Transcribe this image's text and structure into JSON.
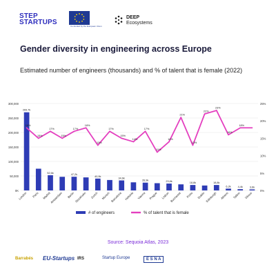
{
  "header": {
    "step_line1": "STEP",
    "step_line2": "STARTUPS",
    "eu_caption": "Co-funded by the European Union",
    "deep_line1": "DEEP",
    "deep_line2": "Ecosystems"
  },
  "title": "Gender diversity in engineering across Europe",
  "subtitle": "Estimated number of engineers (thousands) and % of talent that is female (2022)",
  "source": "Source: Sequoia Atlas, 2023",
  "footer": {
    "logo1": "Barrabés",
    "logo2": "EU-Startups",
    "logo3": "IRS",
    "logo4": "Startup Europe",
    "logo5": "E S N A"
  },
  "colors": {
    "bar": "#2e3cb5",
    "line": "#e43fbf",
    "title": "#1a1a3a",
    "source": "#7a2bd8"
  },
  "chart_data": {
    "type": "bar+line",
    "categories": [
      "London",
      "Paris",
      "Madrid",
      "Amsterdam",
      "Berlin",
      "Stockholm",
      "Zurich",
      "Munich",
      "Barcelona",
      "Helsinki",
      "Vienna",
      "Prague",
      "Lisbon",
      "Bucharest",
      "Porto",
      "Dublin",
      "Edinburgh",
      "Athens",
      "Tallinn",
      "Vilnius"
    ],
    "series": [
      {
        "name": "# of engineers",
        "type": "bar",
        "axis": "left",
        "values": [
          269.7,
          75,
          52.6,
          47,
          47.2,
          45,
          40.9,
          36,
          34.6,
          28,
          26.9,
          25,
          23.8,
          21,
          18.8,
          17,
          18.8,
          6.2,
          4.4,
          3.6
        ],
        "labels": [
          "269,7k",
          "",
          "52,6k",
          "",
          "47,2k",
          "",
          "40,9k",
          "",
          "34,6k",
          "",
          "26,9k",
          "",
          "23,8k",
          "",
          "18,8k",
          "",
          "18,8k",
          "6,2k",
          "4,4k",
          "3,6k"
        ]
      },
      {
        "name": "% of talent that is female",
        "type": "line",
        "axis": "right",
        "values": [
          18,
          15,
          17,
          15,
          17,
          18,
          13,
          17,
          15,
          14,
          17,
          11,
          14,
          21,
          13,
          22,
          23,
          16,
          18,
          18
        ],
        "labels": [
          "18%",
          "15%",
          "17%",
          "15%",
          "17%",
          "18%",
          "13%",
          "17%",
          "15%",
          "14%",
          "17%",
          "11%",
          "14%",
          "21%",
          "13%",
          "22%",
          "23%",
          "16%",
          "18%",
          ""
        ]
      }
    ],
    "y_left": {
      "min": 0,
      "max": 300,
      "ticks": [
        "0K",
        "50,000",
        "100,000",
        "150,000",
        "200,000",
        "250,000",
        "300,000"
      ]
    },
    "y_right": {
      "min": 0,
      "max": 25,
      "ticks": [
        "0%",
        "5%",
        "10%",
        "15%",
        "20%",
        "25%"
      ]
    },
    "grid": true,
    "legend_position": "bottom"
  }
}
